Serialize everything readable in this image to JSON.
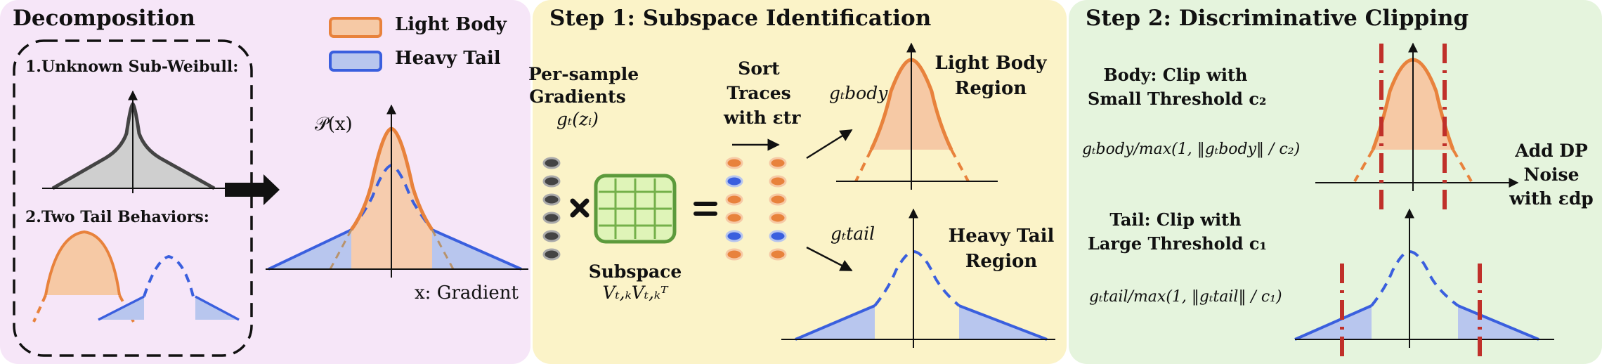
{
  "colors": {
    "panel1_bg": "#f6e6f8",
    "panel2_bg": "#fbf3c8",
    "panel3_bg": "#e5f4dd",
    "light_body": "#e8823c",
    "light_body_fill": "#f6c9a5",
    "heavy_tail": "#3a5fde",
    "heavy_tail_fill": "#b8c6ee",
    "clip_line": "#c0302a",
    "grid_green": "#74b04a",
    "grid_fill": "#dff4b8",
    "gray_curve": "#444444",
    "gray_fill": "#cfcfcf"
  },
  "panel1": {
    "title": "Decomposition",
    "unknown_label": "1.Unknown Sub-Weibull:",
    "two_tail_label": "2.Two Tail Behaviors:",
    "legend_light": "Light Body",
    "legend_heavy": "Heavy Tail",
    "px_label": "𝒫(x)",
    "x_label": "x: Gradient"
  },
  "panel2": {
    "title": "Step 1: Subspace Identification",
    "per_sample_1": "Per-sample",
    "per_sample_2": "Gradients",
    "per_sample_3": "gₜ(zᵢ)",
    "sort_1": "Sort",
    "sort_2": "Traces",
    "sort_3": "with εtr",
    "subspace_1": "Subspace",
    "subspace_2": "Vₜ,ₖVₜ,ₖᵀ",
    "g_body": "gₜbody",
    "g_tail": "gₜtail",
    "body_region_1": "Light Body",
    "body_region_2": "Region",
    "tail_region_1": "Heavy Tail",
    "tail_region_2": "Region"
  },
  "panel3": {
    "title": "Step 2: Discriminative Clipping",
    "body_clip_1": "Body: Clip with",
    "body_clip_2": "Small Threshold c₂",
    "body_formula": "gₜbody/max(1, ‖gₜbody‖ / c₂)",
    "tail_clip_1": "Tail: Clip with",
    "tail_clip_2": "Large Threshold c₁",
    "tail_formula": "gₜtail/max(1, ‖gₜtail‖ / c₁)",
    "dp_1": "Add DP",
    "dp_2": "Noise",
    "dp_3": "with εdp"
  },
  "dots": {
    "left_column": [
      "gray",
      "gray",
      "gray",
      "gray",
      "gray",
      "gray",
      "gray",
      "gray"
    ],
    "sorted_col1": [
      "orange",
      "blue",
      "orange",
      "orange",
      "blue",
      "orange"
    ],
    "sorted_col2": [
      "orange",
      "orange",
      "orange",
      "orange",
      "blue",
      "orange"
    ]
  }
}
